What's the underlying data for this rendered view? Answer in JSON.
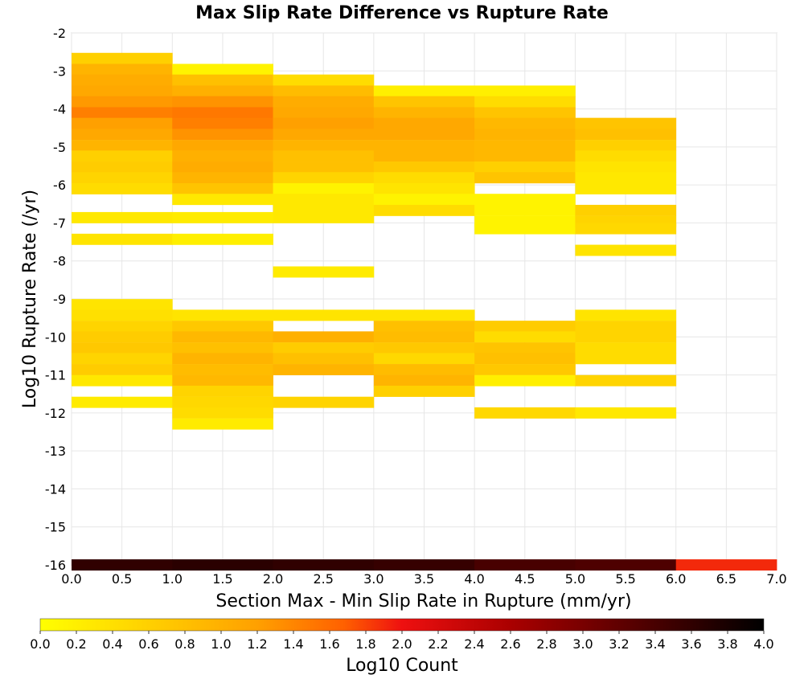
{
  "chart_data": {
    "type": "heatmap",
    "title": "Max Slip Rate Difference vs Rupture Rate",
    "xlabel": "Section Max - Min Slip Rate in Rupture (mm/yr)",
    "ylabel": "Log10 Rupture Rate (/yr)",
    "xlim": [
      0.0,
      7.0
    ],
    "ylim": [
      -16,
      -2
    ],
    "x_ticks": [
      "0.0",
      "0.5",
      "1.0",
      "1.5",
      "2.0",
      "2.5",
      "3.0",
      "3.5",
      "4.0",
      "4.5",
      "5.0",
      "5.5",
      "6.0",
      "6.5",
      "7.0"
    ],
    "y_ticks": [
      "-2",
      "-3",
      "-4",
      "-5",
      "-6",
      "-7",
      "-8",
      "-9",
      "-10",
      "-11",
      "-12",
      "-13",
      "-14",
      "-15",
      "-16"
    ],
    "x_bin_width": 1.0,
    "y_bin_height": 0.286,
    "colorscale": {
      "label": "Log10 Count",
      "range": [
        0.0,
        4.0
      ],
      "ticks": [
        "0.0",
        "0.2",
        "0.4",
        "0.6",
        "0.8",
        "1.0",
        "1.2",
        "1.4",
        "1.6",
        "1.8",
        "2.0",
        "2.2",
        "2.4",
        "2.6",
        "2.8",
        "3.0",
        "3.2",
        "3.4",
        "3.6",
        "3.8",
        "4.0"
      ],
      "stops": [
        [
          0.0,
          "#ffff00"
        ],
        [
          0.15,
          "#ffd000"
        ],
        [
          0.3,
          "#ffa000"
        ],
        [
          0.42,
          "#ff6000"
        ],
        [
          0.5,
          "#ee1010"
        ],
        [
          0.65,
          "#aa0000"
        ],
        [
          0.8,
          "#600000"
        ],
        [
          1.0,
          "#000000"
        ]
      ]
    },
    "cells": [
      {
        "x0": 0.0,
        "ylo": -2.81,
        "value": 0.6
      },
      {
        "x0": 0.0,
        "ylo": -3.1,
        "value": 0.95
      },
      {
        "x0": 0.0,
        "ylo": -3.38,
        "value": 1.05
      },
      {
        "x0": 0.0,
        "ylo": -3.67,
        "value": 1.1
      },
      {
        "x0": 0.0,
        "ylo": -3.95,
        "value": 1.25
      },
      {
        "x0": 0.0,
        "ylo": -4.24,
        "value": 1.45
      },
      {
        "x0": 0.0,
        "ylo": -4.52,
        "value": 1.2
      },
      {
        "x0": 0.0,
        "ylo": -4.81,
        "value": 1.1
      },
      {
        "x0": 0.0,
        "ylo": -5.1,
        "value": 0.95
      },
      {
        "x0": 0.0,
        "ylo": -5.38,
        "value": 0.6
      },
      {
        "x0": 0.0,
        "ylo": -5.67,
        "value": 0.65
      },
      {
        "x0": 0.0,
        "ylo": -5.95,
        "value": 0.55
      },
      {
        "x0": 0.0,
        "ylo": -6.24,
        "value": 0.45
      },
      {
        "x0": 0.0,
        "ylo": -7.0,
        "value": 0.3
      },
      {
        "x0": 0.0,
        "ylo": -7.57,
        "value": 0.35
      },
      {
        "x0": 1.0,
        "ylo": -3.1,
        "value": 0.15
      },
      {
        "x0": 1.0,
        "ylo": -3.38,
        "value": 0.8
      },
      {
        "x0": 1.0,
        "ylo": -3.67,
        "value": 1.0
      },
      {
        "x0": 1.0,
        "ylo": -3.95,
        "value": 1.3
      },
      {
        "x0": 1.0,
        "ylo": -4.24,
        "value": 1.5
      },
      {
        "x0": 1.0,
        "ylo": -4.52,
        "value": 1.45
      },
      {
        "x0": 1.0,
        "ylo": -4.81,
        "value": 1.3
      },
      {
        "x0": 1.0,
        "ylo": -5.1,
        "value": 1.1
      },
      {
        "x0": 1.0,
        "ylo": -5.38,
        "value": 1.0
      },
      {
        "x0": 1.0,
        "ylo": -5.67,
        "value": 1.05
      },
      {
        "x0": 1.0,
        "ylo": -5.95,
        "value": 0.95
      },
      {
        "x0": 1.0,
        "ylo": -6.24,
        "value": 0.75
      },
      {
        "x0": 1.0,
        "ylo": -6.52,
        "value": 0.3
      },
      {
        "x0": 1.0,
        "ylo": -7.0,
        "value": 0.25
      },
      {
        "x0": 1.0,
        "ylo": -7.57,
        "value": 0.2
      },
      {
        "x0": 2.0,
        "ylo": -3.38,
        "value": 0.45
      },
      {
        "x0": 2.0,
        "ylo": -3.67,
        "value": 0.85
      },
      {
        "x0": 2.0,
        "ylo": -3.95,
        "value": 1.05
      },
      {
        "x0": 2.0,
        "ylo": -4.24,
        "value": 1.1
      },
      {
        "x0": 2.0,
        "ylo": -4.52,
        "value": 1.2
      },
      {
        "x0": 2.0,
        "ylo": -4.81,
        "value": 1.1
      },
      {
        "x0": 2.0,
        "ylo": -5.1,
        "value": 0.95
      },
      {
        "x0": 2.0,
        "ylo": -5.38,
        "value": 0.8
      },
      {
        "x0": 2.0,
        "ylo": -5.67,
        "value": 0.8
      },
      {
        "x0": 2.0,
        "ylo": -5.95,
        "value": 0.55
      },
      {
        "x0": 2.0,
        "ylo": -6.24,
        "value": 0.15
      },
      {
        "x0": 2.0,
        "ylo": -6.52,
        "value": 0.3
      },
      {
        "x0": 2.0,
        "ylo": -6.81,
        "value": 0.3
      },
      {
        "x0": 2.0,
        "ylo": -7.0,
        "value": 0.3
      },
      {
        "x0": 2.0,
        "ylo": -8.43,
        "value": 0.25
      },
      {
        "x0": 3.0,
        "ylo": -3.67,
        "value": 0.2
      },
      {
        "x0": 3.0,
        "ylo": -3.95,
        "value": 0.75
      },
      {
        "x0": 3.0,
        "ylo": -4.24,
        "value": 0.95
      },
      {
        "x0": 3.0,
        "ylo": -4.52,
        "value": 1.1
      },
      {
        "x0": 3.0,
        "ylo": -4.81,
        "value": 1.1
      },
      {
        "x0": 3.0,
        "ylo": -5.1,
        "value": 0.95
      },
      {
        "x0": 3.0,
        "ylo": -5.38,
        "value": 0.95
      },
      {
        "x0": 3.0,
        "ylo": -5.67,
        "value": 0.7
      },
      {
        "x0": 3.0,
        "ylo": -5.95,
        "value": 0.45
      },
      {
        "x0": 3.0,
        "ylo": -6.24,
        "value": 0.35
      },
      {
        "x0": 3.0,
        "ylo": -6.52,
        "value": 0.15
      },
      {
        "x0": 3.0,
        "ylo": -6.81,
        "value": 0.45
      },
      {
        "x0": 4.0,
        "ylo": -3.67,
        "value": 0.2
      },
      {
        "x0": 4.0,
        "ylo": -3.95,
        "value": 0.45
      },
      {
        "x0": 4.0,
        "ylo": -4.24,
        "value": 0.75
      },
      {
        "x0": 4.0,
        "ylo": -4.52,
        "value": 0.9
      },
      {
        "x0": 4.0,
        "ylo": -4.81,
        "value": 0.95
      },
      {
        "x0": 4.0,
        "ylo": -5.1,
        "value": 0.9
      },
      {
        "x0": 4.0,
        "ylo": -5.38,
        "value": 0.9
      },
      {
        "x0": 4.0,
        "ylo": -5.67,
        "value": 0.6
      },
      {
        "x0": 4.0,
        "ylo": -5.95,
        "value": 0.75
      },
      {
        "x0": 4.0,
        "ylo": -6.52,
        "value": 0.15
      },
      {
        "x0": 4.0,
        "ylo": -6.81,
        "value": 0.15
      },
      {
        "x0": 4.0,
        "ylo": -7.1,
        "value": 0.15
      },
      {
        "x0": 4.0,
        "ylo": -7.29,
        "value": 0.15
      },
      {
        "x0": 5.0,
        "ylo": -4.52,
        "value": 0.75
      },
      {
        "x0": 5.0,
        "ylo": -4.81,
        "value": 0.8
      },
      {
        "x0": 5.0,
        "ylo": -5.1,
        "value": 0.6
      },
      {
        "x0": 5.0,
        "ylo": -5.38,
        "value": 0.45
      },
      {
        "x0": 5.0,
        "ylo": -5.67,
        "value": 0.35
      },
      {
        "x0": 5.0,
        "ylo": -5.95,
        "value": 0.3
      },
      {
        "x0": 5.0,
        "ylo": -6.24,
        "value": 0.3
      },
      {
        "x0": 5.0,
        "ylo": -6.81,
        "value": 0.6
      },
      {
        "x0": 5.0,
        "ylo": -7.1,
        "value": 0.55
      },
      {
        "x0": 5.0,
        "ylo": -7.29,
        "value": 0.5
      },
      {
        "x0": 5.0,
        "ylo": -7.86,
        "value": 0.35
      },
      {
        "x0": 0.0,
        "ylo": -9.29,
        "value": 0.35
      },
      {
        "x0": 0.0,
        "ylo": -9.57,
        "value": 0.4
      },
      {
        "x0": 0.0,
        "ylo": -9.86,
        "value": 0.55
      },
      {
        "x0": 0.0,
        "ylo": -10.14,
        "value": 0.65
      },
      {
        "x0": 0.0,
        "ylo": -10.43,
        "value": 0.7
      },
      {
        "x0": 0.0,
        "ylo": -10.71,
        "value": 0.55
      },
      {
        "x0": 0.0,
        "ylo": -11.0,
        "value": 0.65
      },
      {
        "x0": 0.0,
        "ylo": -11.29,
        "value": 0.3
      },
      {
        "x0": 0.0,
        "ylo": -11.86,
        "value": 0.25
      },
      {
        "x0": 1.0,
        "ylo": -9.57,
        "value": 0.35
      },
      {
        "x0": 1.0,
        "ylo": -9.86,
        "value": 0.7
      },
      {
        "x0": 1.0,
        "ylo": -10.14,
        "value": 0.9
      },
      {
        "x0": 1.0,
        "ylo": -10.43,
        "value": 0.8
      },
      {
        "x0": 1.0,
        "ylo": -10.71,
        "value": 0.95
      },
      {
        "x0": 1.0,
        "ylo": -11.0,
        "value": 0.85
      },
      {
        "x0": 1.0,
        "ylo": -11.29,
        "value": 0.9
      },
      {
        "x0": 1.0,
        "ylo": -11.57,
        "value": 0.55
      },
      {
        "x0": 1.0,
        "ylo": -11.86,
        "value": 0.5
      },
      {
        "x0": 1.0,
        "ylo": -12.14,
        "value": 0.45
      },
      {
        "x0": 1.0,
        "ylo": -12.43,
        "value": 0.25
      },
      {
        "x0": 2.0,
        "ylo": -9.57,
        "value": 0.35
      },
      {
        "x0": 2.0,
        "ylo": -10.14,
        "value": 1.0
      },
      {
        "x0": 2.0,
        "ylo": -10.43,
        "value": 0.65
      },
      {
        "x0": 2.0,
        "ylo": -10.71,
        "value": 0.8
      },
      {
        "x0": 2.0,
        "ylo": -11.0,
        "value": 0.95
      },
      {
        "x0": 2.0,
        "ylo": -11.86,
        "value": 0.55
      },
      {
        "x0": 3.0,
        "ylo": -9.57,
        "value": 0.35
      },
      {
        "x0": 3.0,
        "ylo": -9.86,
        "value": 0.8
      },
      {
        "x0": 3.0,
        "ylo": -10.14,
        "value": 0.85
      },
      {
        "x0": 3.0,
        "ylo": -10.43,
        "value": 0.7
      },
      {
        "x0": 3.0,
        "ylo": -10.71,
        "value": 0.5
      },
      {
        "x0": 3.0,
        "ylo": -11.0,
        "value": 0.85
      },
      {
        "x0": 3.0,
        "ylo": -11.29,
        "value": 0.95
      },
      {
        "x0": 3.0,
        "ylo": -11.57,
        "value": 0.6
      },
      {
        "x0": 4.0,
        "ylo": -9.86,
        "value": 0.65
      },
      {
        "x0": 4.0,
        "ylo": -10.14,
        "value": 0.45
      },
      {
        "x0": 4.0,
        "ylo": -10.43,
        "value": 0.75
      },
      {
        "x0": 4.0,
        "ylo": -10.71,
        "value": 0.8
      },
      {
        "x0": 4.0,
        "ylo": -11.0,
        "value": 0.7
      },
      {
        "x0": 4.0,
        "ylo": -11.29,
        "value": 0.2
      },
      {
        "x0": 4.0,
        "ylo": -12.14,
        "value": 0.5
      },
      {
        "x0": 5.0,
        "ylo": -9.57,
        "value": 0.35
      },
      {
        "x0": 5.0,
        "ylo": -9.86,
        "value": 0.55
      },
      {
        "x0": 5.0,
        "ylo": -10.14,
        "value": 0.55
      },
      {
        "x0": 5.0,
        "ylo": -10.43,
        "value": 0.45
      },
      {
        "x0": 5.0,
        "ylo": -10.71,
        "value": 0.45
      },
      {
        "x0": 5.0,
        "ylo": -11.29,
        "value": 0.55
      },
      {
        "x0": 5.0,
        "ylo": -12.14,
        "value": 0.3
      },
      {
        "x0": 0.0,
        "ylo": -16.14,
        "value": 3.6
      },
      {
        "x0": 1.0,
        "ylo": -16.14,
        "value": 3.65
      },
      {
        "x0": 2.0,
        "ylo": -16.14,
        "value": 3.6
      },
      {
        "x0": 3.0,
        "ylo": -16.14,
        "value": 3.55
      },
      {
        "x0": 4.0,
        "ylo": -16.14,
        "value": 3.4
      },
      {
        "x0": 5.0,
        "ylo": -16.14,
        "value": 3.35
      },
      {
        "x0": 6.0,
        "ylo": -16.14,
        "value": 1.9
      }
    ]
  }
}
